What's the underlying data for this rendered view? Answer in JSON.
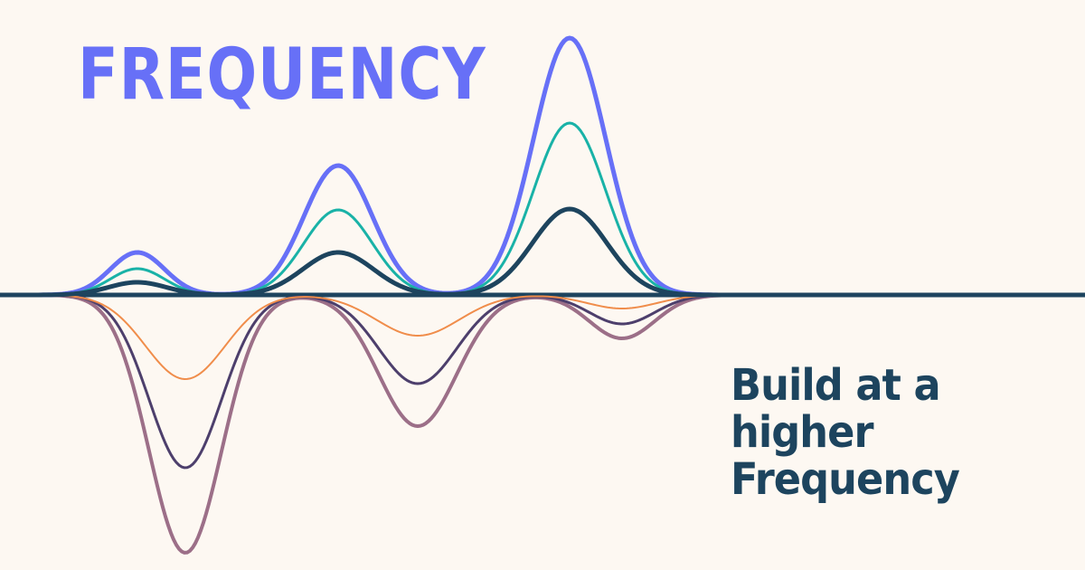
{
  "brand": {
    "wordmark": "FREQUENCY"
  },
  "tagline": {
    "line1": "Build at a",
    "line2": "higher",
    "line3": "Frequency"
  },
  "colors": {
    "background": "#fdf8f2",
    "brand_blue": "#6770f7",
    "dark_navy": "#1d445e",
    "teal": "#19b2a7",
    "orange": "#f08d4b",
    "plum": "#4d3f6c",
    "mauve": "#9c6f88"
  }
}
